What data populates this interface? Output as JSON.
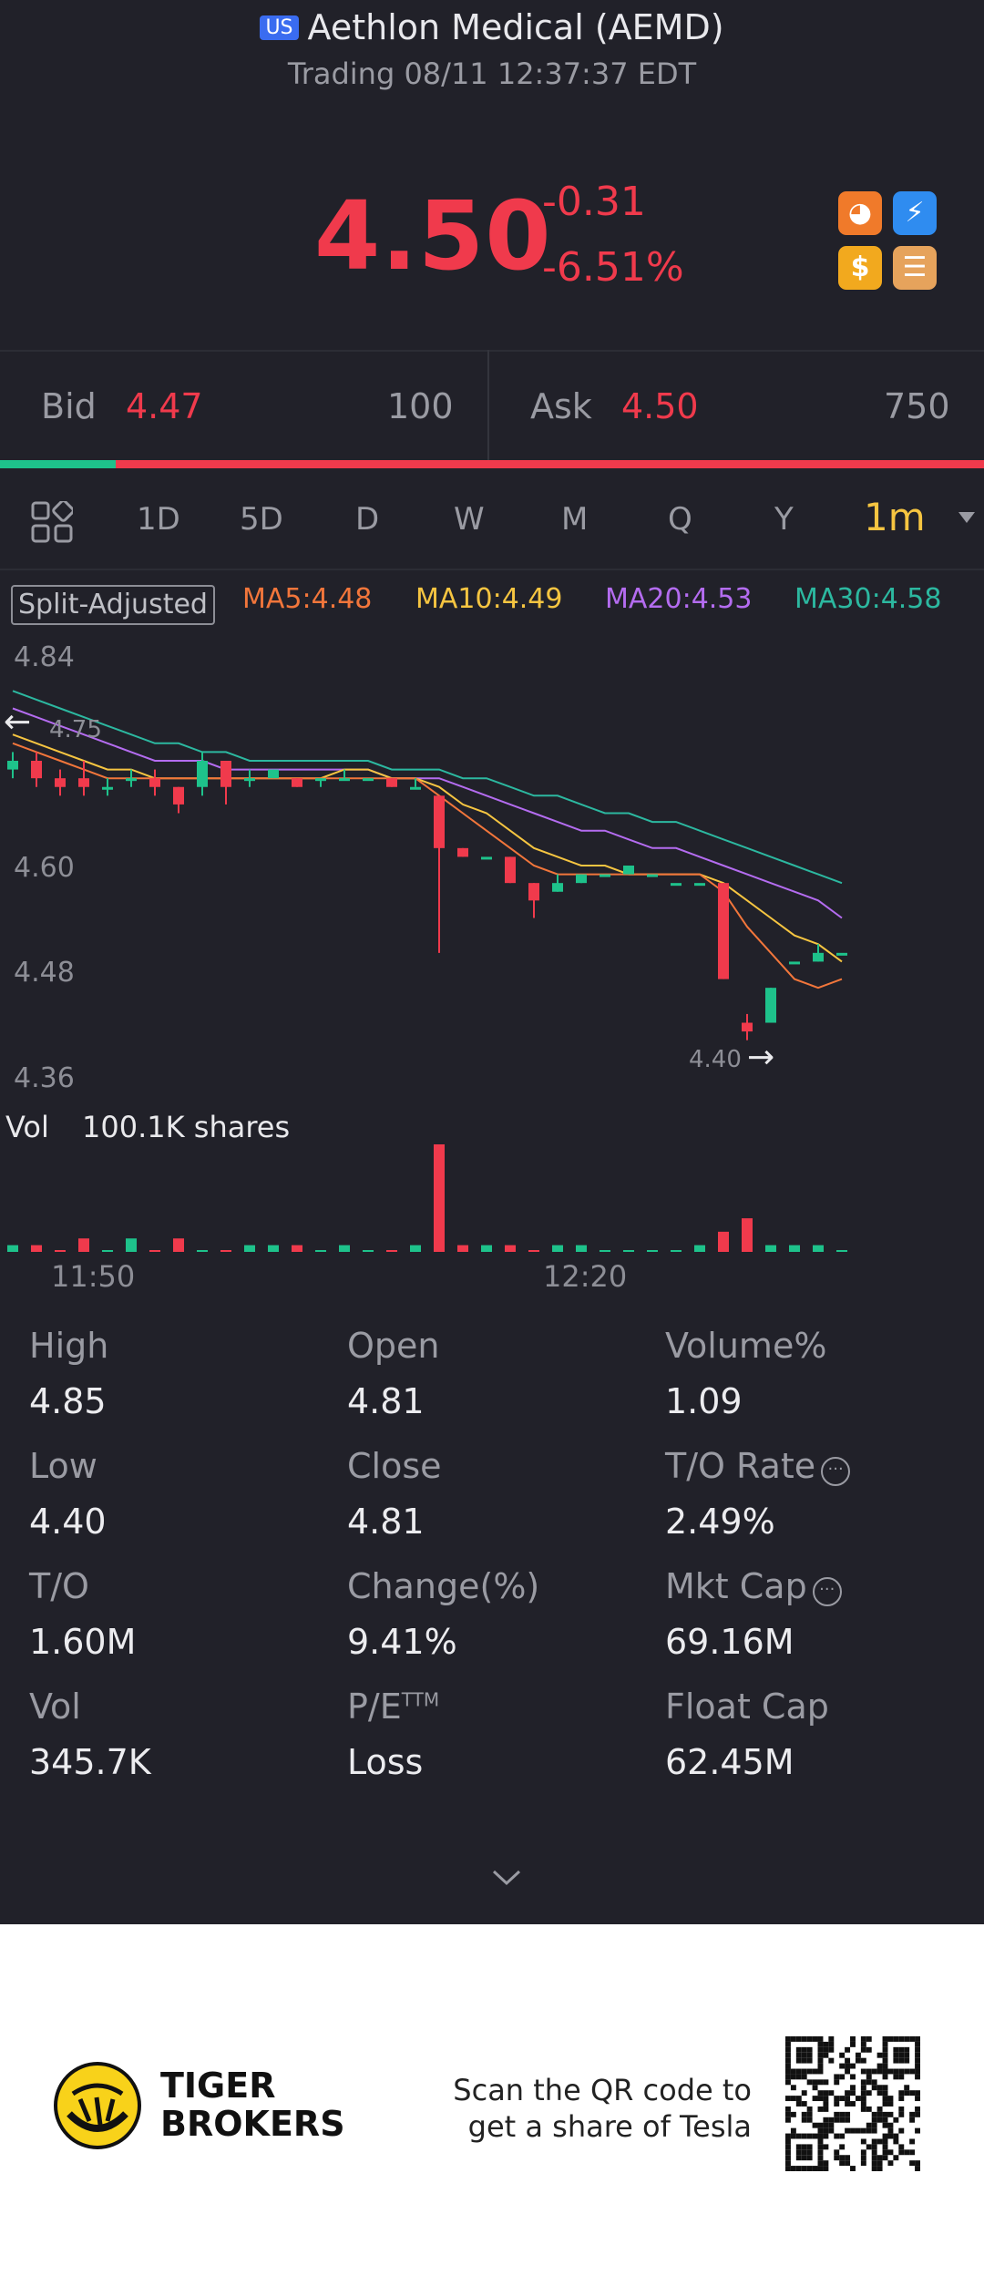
{
  "header": {
    "market_badge": "US",
    "title": "Aethlon Medical (AEMD)",
    "status": "Trading 08/11 12:37:37 EDT"
  },
  "quote": {
    "price": "4.50",
    "change": "-0.31",
    "change_pct": "-6.51%"
  },
  "bid_ask": {
    "bid_label": "Bid",
    "bid_price": "4.47",
    "bid_size": "100",
    "ask_label": "Ask",
    "ask_price": "4.50",
    "ask_size": "750",
    "bid_ratio": 0.118
  },
  "tabs": [
    "1D",
    "5D",
    "D",
    "W",
    "M",
    "Q",
    "Y"
  ],
  "active_tab": "1m",
  "indicators": {
    "split": "Split-Adjusted",
    "ma5": "MA5:4.48",
    "ma10": "MA10:4.49",
    "ma20": "MA20:4.53",
    "ma30": "MA30:4.58"
  },
  "chart": {
    "y_ticks": [
      "4.84",
      "4.60",
      "4.48",
      "4.36"
    ],
    "high_marker": "4.75",
    "low_marker": "4.40",
    "x_ticks": [
      "11:50",
      "12:20"
    ],
    "vol_label": "Vol",
    "vol_value": "100.1K shares"
  },
  "chart_data": {
    "type": "candlestick",
    "ylim": [
      4.36,
      4.84
    ],
    "candles": [
      {
        "o": 4.71,
        "c": 4.72,
        "h": 4.73,
        "l": 4.7
      },
      {
        "o": 4.72,
        "c": 4.7,
        "h": 4.73,
        "l": 4.69
      },
      {
        "o": 4.7,
        "c": 4.69,
        "h": 4.71,
        "l": 4.68
      },
      {
        "o": 4.7,
        "c": 4.69,
        "h": 4.72,
        "l": 4.68
      },
      {
        "o": 4.69,
        "c": 4.69,
        "h": 4.7,
        "l": 4.68
      },
      {
        "o": 4.7,
        "c": 4.7,
        "h": 4.71,
        "l": 4.69
      },
      {
        "o": 4.7,
        "c": 4.69,
        "h": 4.71,
        "l": 4.68
      },
      {
        "o": 4.69,
        "c": 4.67,
        "h": 4.69,
        "l": 4.66
      },
      {
        "o": 4.69,
        "c": 4.72,
        "h": 4.73,
        "l": 4.68
      },
      {
        "o": 4.72,
        "c": 4.69,
        "h": 4.72,
        "l": 4.67
      },
      {
        "o": 4.7,
        "c": 4.7,
        "h": 4.71,
        "l": 4.69
      },
      {
        "o": 4.7,
        "c": 4.71,
        "h": 4.71,
        "l": 4.7
      },
      {
        "o": 4.7,
        "c": 4.69,
        "h": 4.7,
        "l": 4.69
      },
      {
        "o": 4.7,
        "c": 4.7,
        "h": 4.7,
        "l": 4.69
      },
      {
        "o": 4.7,
        "c": 4.7,
        "h": 4.71,
        "l": 4.7
      },
      {
        "o": 4.7,
        "c": 4.7,
        "h": 4.7,
        "l": 4.7
      },
      {
        "o": 4.7,
        "c": 4.69,
        "h": 4.7,
        "l": 4.69
      },
      {
        "o": 4.69,
        "c": 4.69,
        "h": 4.7,
        "l": 4.69
      },
      {
        "o": 4.68,
        "c": 4.62,
        "h": 4.68,
        "l": 4.5
      },
      {
        "o": 4.62,
        "c": 4.61,
        "h": 4.62,
        "l": 4.61
      },
      {
        "o": 4.61,
        "c": 4.61,
        "h": 4.61,
        "l": 4.61
      },
      {
        "o": 4.61,
        "c": 4.58,
        "h": 4.61,
        "l": 4.58
      },
      {
        "o": 4.58,
        "c": 4.56,
        "h": 4.58,
        "l": 4.54
      },
      {
        "o": 4.57,
        "c": 4.58,
        "h": 4.59,
        "l": 4.57
      },
      {
        "o": 4.58,
        "c": 4.59,
        "h": 4.59,
        "l": 4.58
      },
      {
        "o": 4.59,
        "c": 4.59,
        "h": 4.59,
        "l": 4.59
      },
      {
        "o": 4.59,
        "c": 4.6,
        "h": 4.6,
        "l": 4.59
      },
      {
        "o": 4.59,
        "c": 4.59,
        "h": 4.59,
        "l": 4.59
      },
      {
        "o": 4.58,
        "c": 4.58,
        "h": 4.58,
        "l": 4.58
      },
      {
        "o": 4.58,
        "c": 4.58,
        "h": 4.58,
        "l": 4.58
      },
      {
        "o": 4.58,
        "c": 4.47,
        "h": 4.58,
        "l": 4.47
      },
      {
        "o": 4.42,
        "c": 4.41,
        "h": 4.43,
        "l": 4.4
      },
      {
        "o": 4.42,
        "c": 4.46,
        "h": 4.46,
        "l": 4.42
      },
      {
        "o": 4.49,
        "c": 4.49,
        "h": 4.49,
        "l": 4.49
      },
      {
        "o": 4.49,
        "c": 4.5,
        "h": 4.51,
        "l": 4.49
      },
      {
        "o": 4.5,
        "c": 4.5,
        "h": 4.5,
        "l": 4.5
      }
    ],
    "ma5": [
      4.74,
      4.73,
      4.72,
      4.71,
      4.7,
      4.7,
      4.7,
      4.7,
      4.7,
      4.7,
      4.7,
      4.7,
      4.7,
      4.7,
      4.7,
      4.7,
      4.7,
      4.7,
      4.68,
      4.66,
      4.64,
      4.62,
      4.6,
      4.59,
      4.59,
      4.59,
      4.59,
      4.59,
      4.59,
      4.59,
      4.57,
      4.53,
      4.5,
      4.47,
      4.46,
      4.47
    ],
    "ma10": [
      4.75,
      4.74,
      4.73,
      4.72,
      4.71,
      4.71,
      4.7,
      4.7,
      4.7,
      4.7,
      4.7,
      4.7,
      4.7,
      4.7,
      4.71,
      4.71,
      4.7,
      4.7,
      4.69,
      4.67,
      4.66,
      4.64,
      4.62,
      4.61,
      4.6,
      4.6,
      4.59,
      4.59,
      4.59,
      4.59,
      4.58,
      4.56,
      4.54,
      4.52,
      4.51,
      4.49
    ],
    "ma20": [
      4.78,
      4.77,
      4.76,
      4.75,
      4.74,
      4.73,
      4.72,
      4.72,
      4.72,
      4.71,
      4.71,
      4.71,
      4.71,
      4.71,
      4.71,
      4.71,
      4.7,
      4.7,
      4.7,
      4.69,
      4.68,
      4.67,
      4.66,
      4.65,
      4.64,
      4.64,
      4.63,
      4.62,
      4.62,
      4.61,
      4.6,
      4.59,
      4.58,
      4.57,
      4.56,
      4.54
    ],
    "ma30": [
      4.8,
      4.79,
      4.78,
      4.77,
      4.76,
      4.75,
      4.74,
      4.74,
      4.73,
      4.73,
      4.72,
      4.72,
      4.72,
      4.72,
      4.72,
      4.72,
      4.71,
      4.71,
      4.71,
      4.7,
      4.7,
      4.69,
      4.68,
      4.68,
      4.67,
      4.66,
      4.66,
      4.65,
      4.65,
      4.64,
      4.63,
      4.62,
      4.61,
      4.6,
      4.59,
      4.58
    ],
    "volume": [
      1,
      1,
      0,
      2,
      0,
      2,
      0,
      2,
      0,
      0,
      1,
      1,
      1,
      0,
      1,
      0,
      0,
      1,
      16,
      1,
      1,
      1,
      0,
      1,
      1,
      0,
      0,
      0,
      0,
      1,
      3,
      5,
      1,
      1,
      1,
      0
    ]
  },
  "stats": [
    {
      "label": "High",
      "value": "4.85"
    },
    {
      "label": "Open",
      "value": "4.81"
    },
    {
      "label": "Volume%",
      "value": "1.09"
    },
    {
      "label": "Low",
      "value": "4.40"
    },
    {
      "label": "Close",
      "value": "4.81"
    },
    {
      "label": "T/O Rate",
      "value": "2.49%"
    },
    {
      "label": "T/O",
      "value": "1.60M"
    },
    {
      "label": "Change(%)",
      "value": "9.41%"
    },
    {
      "label": "Mkt Cap",
      "value": "69.16M"
    },
    {
      "label": "Vol",
      "value": "345.7K"
    },
    {
      "label": "P/E",
      "value": "Loss"
    },
    {
      "label": "Float Cap",
      "value": "62.45M"
    }
  ],
  "pe_suffix": "TTM",
  "footer": {
    "brand_line1": "TIGER",
    "brand_line2": "BROKERS",
    "scan_line1": "Scan the QR code to",
    "scan_line2": "get a share of Tesla"
  },
  "colors": {
    "background": "#212129",
    "up": "#1ec28b",
    "down": "#f03a4c",
    "ma5": "#f2763b",
    "ma10": "#f6c541",
    "ma20": "#b46cf0",
    "ma30": "#2cb8a0",
    "accent": "#f6c541"
  }
}
